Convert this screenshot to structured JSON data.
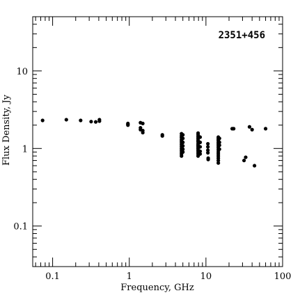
{
  "chart_data": {
    "type": "scatter",
    "title": "2351+456",
    "xlabel": "Frequency, GHz",
    "ylabel": "Flux Density, Jy",
    "xscale": "log",
    "yscale": "log",
    "xlim": [
      0.055,
      100
    ],
    "ylim": [
      0.03,
      50
    ],
    "x_tick_labels": [
      "0.1",
      "1",
      "10",
      "100"
    ],
    "y_tick_labels": [
      "0.1",
      "1",
      "10"
    ],
    "grid": false,
    "marker_color": "#000000",
    "points": [
      [
        0.074,
        2.3
      ],
      [
        0.151,
        2.35
      ],
      [
        0.232,
        2.3
      ],
      [
        0.318,
        2.22
      ],
      [
        0.365,
        2.2
      ],
      [
        0.408,
        2.25
      ],
      [
        0.408,
        2.35
      ],
      [
        0.96,
        2.05
      ],
      [
        0.96,
        2.1
      ],
      [
        0.96,
        2.0
      ],
      [
        1.4,
        2.15
      ],
      [
        1.4,
        1.85
      ],
      [
        1.4,
        1.75
      ],
      [
        1.5,
        2.1
      ],
      [
        1.5,
        1.7
      ],
      [
        1.5,
        1.6
      ],
      [
        2.7,
        1.5
      ],
      [
        2.7,
        1.45
      ],
      [
        4.8,
        1.55
      ],
      [
        4.8,
        1.45
      ],
      [
        4.8,
        1.38
      ],
      [
        4.8,
        1.3
      ],
      [
        4.8,
        1.24
      ],
      [
        4.8,
        1.18
      ],
      [
        4.8,
        1.12
      ],
      [
        4.8,
        1.06
      ],
      [
        4.8,
        1.0
      ],
      [
        4.8,
        0.95
      ],
      [
        4.8,
        0.9
      ],
      [
        4.8,
        0.85
      ],
      [
        4.8,
        0.8
      ],
      [
        5.0,
        1.5
      ],
      [
        5.0,
        1.35
      ],
      [
        5.0,
        1.2
      ],
      [
        5.0,
        1.08
      ],
      [
        5.0,
        0.98
      ],
      [
        5.0,
        0.9
      ],
      [
        7.9,
        1.58
      ],
      [
        7.9,
        1.5
      ],
      [
        7.9,
        1.42
      ],
      [
        7.9,
        1.35
      ],
      [
        7.9,
        1.28
      ],
      [
        7.9,
        1.22
      ],
      [
        7.9,
        1.15
      ],
      [
        7.9,
        1.1
      ],
      [
        7.9,
        1.05
      ],
      [
        7.9,
        1.0
      ],
      [
        7.9,
        0.95
      ],
      [
        7.9,
        0.9
      ],
      [
        7.9,
        0.85
      ],
      [
        7.9,
        0.8
      ],
      [
        8.4,
        1.4
      ],
      [
        8.4,
        1.2
      ],
      [
        8.4,
        1.05
      ],
      [
        8.4,
        0.92
      ],
      [
        8.4,
        0.85
      ],
      [
        10.6,
        1.15
      ],
      [
        10.6,
        1.05
      ],
      [
        10.6,
        0.95
      ],
      [
        10.6,
        0.88
      ],
      [
        10.7,
        0.75
      ],
      [
        10.7,
        0.72
      ],
      [
        14.5,
        1.4
      ],
      [
        14.5,
        1.33
      ],
      [
        14.5,
        1.27
      ],
      [
        14.5,
        1.2
      ],
      [
        14.5,
        1.14
      ],
      [
        14.5,
        1.08
      ],
      [
        14.5,
        1.02
      ],
      [
        14.5,
        0.96
      ],
      [
        14.5,
        0.9
      ],
      [
        14.5,
        0.85
      ],
      [
        14.5,
        0.8
      ],
      [
        14.5,
        0.75
      ],
      [
        14.5,
        0.7
      ],
      [
        14.5,
        0.65
      ],
      [
        15.0,
        1.35
      ],
      [
        15.0,
        1.2
      ],
      [
        15.0,
        1.1
      ],
      [
        15.0,
        0.98
      ],
      [
        22.0,
        1.8
      ],
      [
        23.0,
        1.8
      ],
      [
        31.4,
        0.7
      ],
      [
        33.0,
        0.77
      ],
      [
        37.0,
        1.9
      ],
      [
        40.0,
        1.75
      ],
      [
        43.0,
        0.6
      ],
      [
        60.0,
        1.8
      ]
    ]
  }
}
